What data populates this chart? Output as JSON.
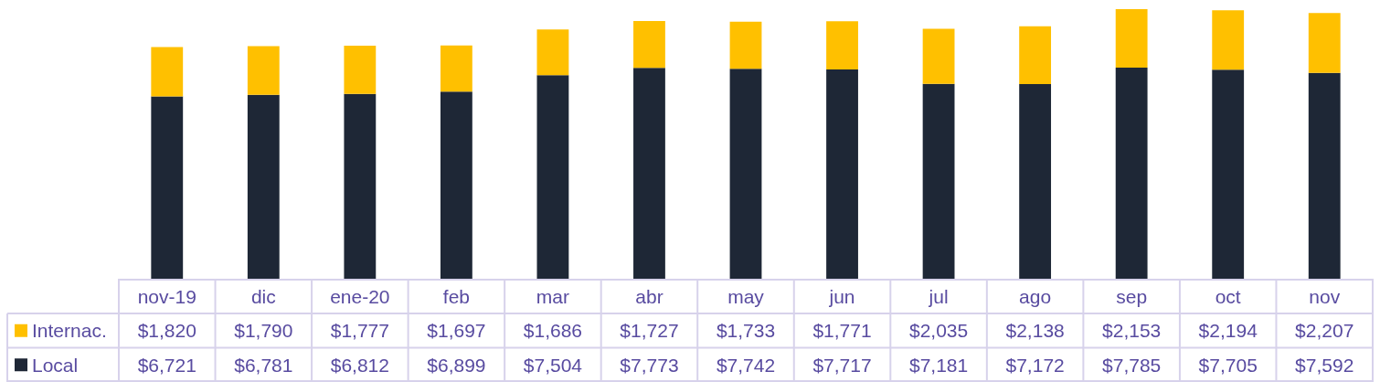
{
  "chart_data": {
    "type": "bar",
    "stacked": true,
    "categories": [
      "nov-19",
      "dic",
      "ene-20",
      "feb",
      "mar",
      "abr",
      "may",
      "jun",
      "jul",
      "ago",
      "sep",
      "oct",
      "nov"
    ],
    "series": [
      {
        "name": "Local",
        "color": "#1e2736",
        "values": [
          6721,
          6781,
          6812,
          6899,
          7504,
          7773,
          7742,
          7717,
          7181,
          7172,
          7785,
          7705,
          7592
        ],
        "value_labels": [
          "$6,721",
          "$6,781",
          "$6,812",
          "$6,899",
          "$7,504",
          "$7,773",
          "$7,742",
          "$7,717",
          "$7,181",
          "$7,172",
          "$7,785",
          "$7,705",
          "$7,592"
        ]
      },
      {
        "name": "Internac.",
        "color": "#ffc000",
        "values": [
          1820,
          1790,
          1777,
          1697,
          1686,
          1727,
          1733,
          1771,
          2035,
          2138,
          2153,
          2194,
          2207
        ],
        "value_labels": [
          "$1,820",
          "$1,790",
          "$1,777",
          "$1,697",
          "$1,686",
          "$1,727",
          "$1,733",
          "$1,771",
          "$2,035",
          "$2,138",
          "$2,153",
          "$2,194",
          "$2,207"
        ]
      }
    ],
    "legend": "bottom left",
    "tick_labels": "x"
  }
}
